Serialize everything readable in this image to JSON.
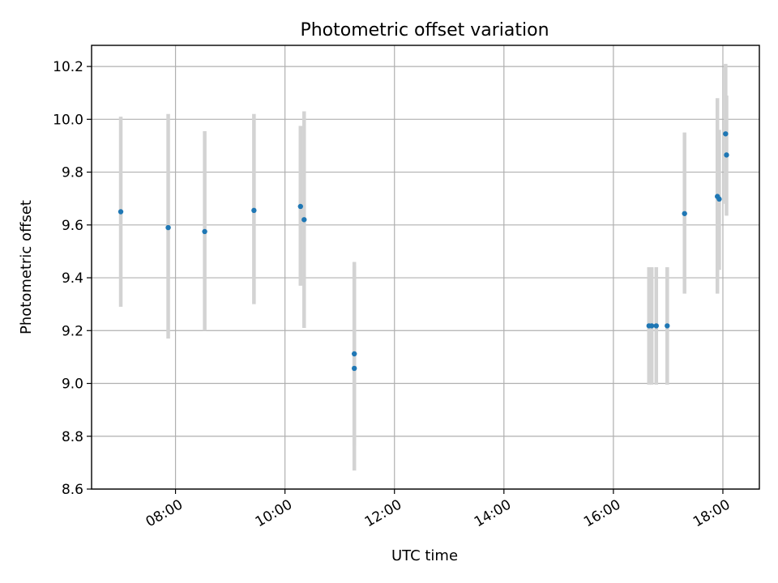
{
  "chart_data": {
    "type": "scatter",
    "title": "Photometric offset variation",
    "xlabel": "UTC time",
    "ylabel": "Photometric offset",
    "xlim": [
      "06:28",
      "18:40"
    ],
    "ylim": [
      8.6,
      10.28
    ],
    "x_ticks": [
      "08:00",
      "10:00",
      "12:00",
      "14:00",
      "16:00",
      "18:00"
    ],
    "y_ticks": [
      "8.6",
      "8.8",
      "9.0",
      "9.2",
      "9.4",
      "9.6",
      "9.8",
      "10.0",
      "10.2"
    ],
    "grid": true,
    "legend": "none",
    "point_color": "#1f77b4",
    "errorbar_color": "#d3d3d3",
    "points": [
      {
        "t": "07:00",
        "y": 9.65,
        "ylo": 9.29,
        "yhi": 10.01
      },
      {
        "t": "07:52",
        "y": 9.59,
        "ylo": 9.17,
        "yhi": 10.02
      },
      {
        "t": "08:32",
        "y": 9.575,
        "ylo": 9.2,
        "yhi": 9.955
      },
      {
        "t": "09:26",
        "y": 9.655,
        "ylo": 9.3,
        "yhi": 10.02
      },
      {
        "t": "10:17",
        "y": 9.67,
        "ylo": 9.37,
        "yhi": 9.975
      },
      {
        "t": "10:21",
        "y": 9.62,
        "ylo": 9.21,
        "yhi": 10.03
      },
      {
        "t": "11:16",
        "y": 9.112,
        "ylo": 8.765,
        "yhi": 9.46
      },
      {
        "t": "11:16",
        "y": 9.057,
        "ylo": 8.67,
        "yhi": 9.445
      },
      {
        "t": "16:39",
        "y": 9.218,
        "ylo": 8.995,
        "yhi": 9.44
      },
      {
        "t": "16:42",
        "y": 9.218,
        "ylo": 8.995,
        "yhi": 9.44
      },
      {
        "t": "16:47",
        "y": 9.218,
        "ylo": 8.995,
        "yhi": 9.44
      },
      {
        "t": "16:59",
        "y": 9.218,
        "ylo": 8.995,
        "yhi": 9.44
      },
      {
        "t": "17:18",
        "y": 9.643,
        "ylo": 9.34,
        "yhi": 9.95
      },
      {
        "t": "17:54",
        "y": 9.708,
        "ylo": 9.34,
        "yhi": 10.08
      },
      {
        "t": "17:56",
        "y": 9.698,
        "ylo": 9.43,
        "yhi": 9.96
      },
      {
        "t": "18:03",
        "y": 9.945,
        "ylo": 9.68,
        "yhi": 10.21
      },
      {
        "t": "18:04",
        "y": 9.865,
        "ylo": 9.635,
        "yhi": 10.09
      }
    ]
  }
}
